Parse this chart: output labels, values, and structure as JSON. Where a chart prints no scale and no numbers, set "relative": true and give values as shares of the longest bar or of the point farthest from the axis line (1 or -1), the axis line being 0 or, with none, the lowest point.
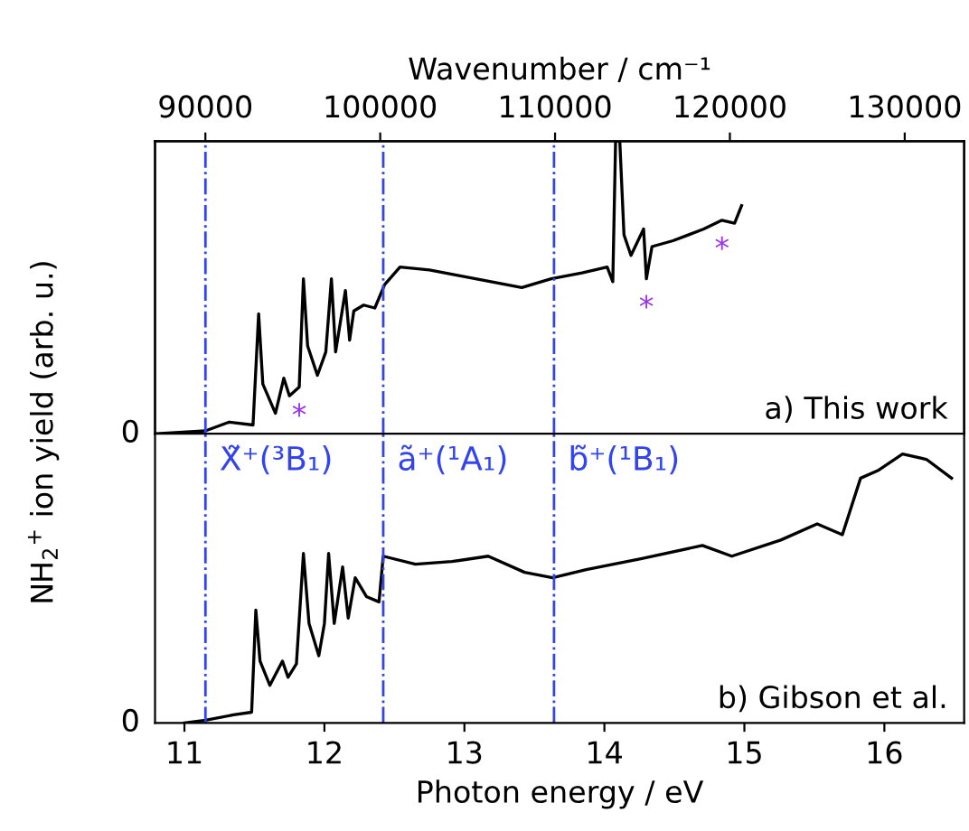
{
  "chart_data": [
    {
      "type": "line",
      "relative": true,
      "x2label": "Wavenumber / cm⁻¹",
      "ylabel": "NH$_{2}$$^{+}$ ion yield (arb. u.)",
      "xlim": [
        10.79,
        16.57
      ],
      "x2lim": [
        87120,
        133400
      ],
      "x2ticks": [
        90000,
        100000,
        110000,
        120000,
        130000
      ],
      "series": [
        {
          "color": "#000000",
          "x": [
            10.8,
            11.15,
            11.32,
            11.49,
            11.53,
            11.56,
            11.65,
            11.71,
            11.75,
            11.82,
            11.85,
            11.88,
            11.95,
            12.01,
            12.05,
            12.08,
            12.15,
            12.18,
            12.21,
            12.28,
            12.36,
            12.43,
            12.54,
            12.75,
            12.97,
            13.19,
            13.41,
            13.62,
            13.84,
            14.02,
            14.06,
            14.08,
            14.11,
            14.14,
            14.19,
            14.28,
            14.3,
            14.34,
            14.49,
            14.71,
            14.84,
            14.93,
            14.98
          ],
          "values": [
            0,
            0.01,
            0.04,
            0.03,
            0.41,
            0.17,
            0.07,
            0.19,
            0.13,
            0.16,
            0.53,
            0.3,
            0.2,
            0.28,
            0.53,
            0.28,
            0.49,
            0.32,
            0.42,
            0.44,
            0.43,
            0.51,
            0.57,
            0.56,
            0.54,
            0.52,
            0.5,
            0.53,
            0.55,
            0.57,
            0.52,
            1.0,
            1.0,
            0.68,
            0.61,
            0.7,
            0.53,
            0.64,
            0.66,
            0.7,
            0.73,
            0.72,
            0.78
          ]
        }
      ],
      "ref_lines": [
        {
          "axis": "x",
          "value": 11.15,
          "color": "#3344ee",
          "line_style": "dashdot"
        },
        {
          "axis": "x",
          "value": 12.42,
          "color": "#3344ee",
          "line_style": "dashdot"
        },
        {
          "axis": "x",
          "value": 13.64,
          "color": "#3344ee",
          "line_style": "dashdot"
        }
      ],
      "annotations": [
        "a) This work",
        "0",
        {
          "text": "*",
          "x": 11.82,
          "y": 0.16
        },
        {
          "text": "*",
          "x": 14.3,
          "y": 0.53
        },
        {
          "text": "*",
          "x": 14.84,
          "y": 0.73
        }
      ]
    },
    {
      "type": "line",
      "relative": true,
      "xlabel": "Photon energy / eV",
      "xlim": [
        10.79,
        16.57
      ],
      "xticks": [
        11,
        12,
        13,
        14,
        15,
        16
      ],
      "series": [
        {
          "color": "#000000",
          "x": [
            11.0,
            11.15,
            11.35,
            11.48,
            11.51,
            11.54,
            11.61,
            11.7,
            11.74,
            11.8,
            11.85,
            11.89,
            11.96,
            12.0,
            12.03,
            12.07,
            12.13,
            12.17,
            12.22,
            12.3,
            12.39,
            12.42,
            12.65,
            12.91,
            13.17,
            13.43,
            13.63,
            13.87,
            14.26,
            14.7,
            14.91,
            15.26,
            15.52,
            15.7,
            15.83,
            15.96,
            16.13,
            16.3,
            16.48
          ],
          "values": [
            0,
            0.01,
            0.03,
            0.04,
            0.42,
            0.23,
            0.14,
            0.23,
            0.17,
            0.22,
            0.63,
            0.37,
            0.25,
            0.37,
            0.63,
            0.37,
            0.58,
            0.39,
            0.54,
            0.47,
            0.45,
            0.62,
            0.59,
            0.6,
            0.62,
            0.56,
            0.54,
            0.57,
            0.61,
            0.66,
            0.62,
            0.68,
            0.74,
            0.7,
            0.91,
            0.94,
            1.0,
            0.98,
            0.91
          ]
        }
      ],
      "ref_lines": [
        {
          "axis": "x",
          "value": 11.15,
          "label": "X̃⁺(³B₁)",
          "color": "#3344ee",
          "line_style": "dashdot"
        },
        {
          "axis": "x",
          "value": 12.42,
          "label": "ã⁺(¹A₁)",
          "color": "#3344ee",
          "line_style": "dashdot"
        },
        {
          "axis": "x",
          "value": 13.64,
          "label": "b̃⁺(¹B₁)",
          "color": "#3344ee",
          "line_style": "dashdot"
        }
      ],
      "annotations": [
        "b) Gibson et al.",
        "0"
      ]
    }
  ]
}
